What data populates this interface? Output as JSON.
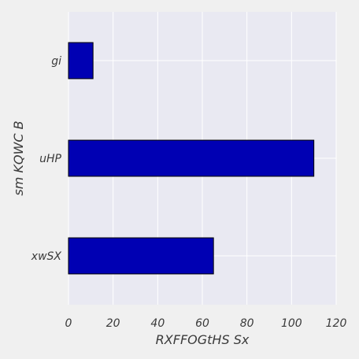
{
  "chart_data": {
    "type": "bar",
    "orientation": "horizontal",
    "categories": [
      "gi",
      "uHP",
      "xwSX"
    ],
    "values": [
      11,
      110,
      65
    ],
    "title": "",
    "xlabel": "RXFFOGtHS Sx",
    "ylabel": "sm  KQWC B",
    "xlim": [
      0,
      120
    ],
    "xticks": [
      0,
      20,
      40,
      60,
      80,
      100,
      120
    ],
    "grid": true,
    "colors": {
      "bar": "#0000b3",
      "bar_edge": "#000000",
      "plot_background": "#e9e9f2",
      "figure_background": "#f0f0f0",
      "grid": "#ffffff"
    }
  }
}
